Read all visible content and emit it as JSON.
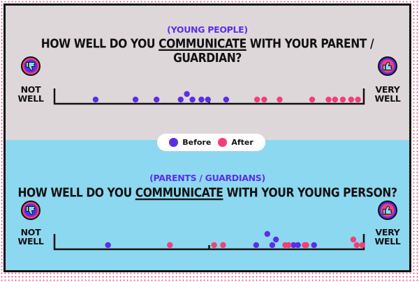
{
  "colors": {
    "before": "#5b2ee6",
    "after": "#f23f78",
    "top_background": "#ded7da",
    "bottom_background": "#8dd8f1",
    "border": "#111111",
    "subtitle": "#5b2ee6"
  },
  "legend": {
    "before_label": "Before",
    "after_label": "After",
    "placement": "center"
  },
  "icons": {
    "low": "thumbs-down-icon",
    "high": "thumbs-up-icon"
  },
  "chart_data": [
    {
      "type": "scatter",
      "subtitle": "(YOUNG PEOPLE)",
      "title_parts": {
        "before": "HOW WELL DO YOU ",
        "underlined": "COMMUNICATE",
        "after": " WITH YOUR PARENT / GUARDIAN?"
      },
      "scale_low": {
        "line1": "NOT",
        "line2": "WELL"
      },
      "scale_high": {
        "line1": "VERY",
        "line2": "WELL"
      },
      "xlim": [
        0,
        100
      ],
      "midpoint": 50,
      "series": [
        {
          "name": "Before",
          "x": [
            13.3,
            26.2,
            33.0,
            40.8,
            42.8,
            44.6,
            47.5,
            49.6,
            55.5
          ],
          "y": [
            1,
            1,
            1,
            1,
            2,
            1,
            1,
            1,
            1
          ]
        },
        {
          "name": "After",
          "x": [
            65.5,
            67.8,
            72.8,
            83.3,
            88.6,
            90.7,
            93.2,
            95.9,
            98.1
          ],
          "y": [
            1,
            1,
            1,
            1,
            1,
            1,
            1,
            1,
            1
          ]
        }
      ]
    },
    {
      "type": "scatter",
      "subtitle": "(PARENTS / GUARDIANS)",
      "title_parts": {
        "before": "HOW WELL DO YOU ",
        "underlined": "COMMUNICATE",
        "after": " WITH YOUR YOUNG PERSON?"
      },
      "scale_low": {
        "line1": "NOT",
        "line2": "WELL"
      },
      "scale_high": {
        "line1": "VERY",
        "line2": "WELL"
      },
      "xlim": [
        0,
        100
      ],
      "midpoint": 50,
      "series": [
        {
          "name": "Before",
          "x": [
            17.3,
            65.2,
            68.8,
            70.4,
            71.6,
            77.3,
            78.7,
            83.9
          ],
          "y": [
            1,
            1,
            3,
            1,
            2,
            1,
            1,
            1
          ]
        },
        {
          "name": "After",
          "x": [
            37.3,
            51.6,
            54.5,
            74.6,
            75.7,
            80.9,
            81.4,
            96.6,
            97.7,
            99.5
          ],
          "y": [
            1,
            1,
            1,
            1,
            1,
            1,
            1,
            2,
            1,
            1
          ]
        }
      ]
    }
  ]
}
